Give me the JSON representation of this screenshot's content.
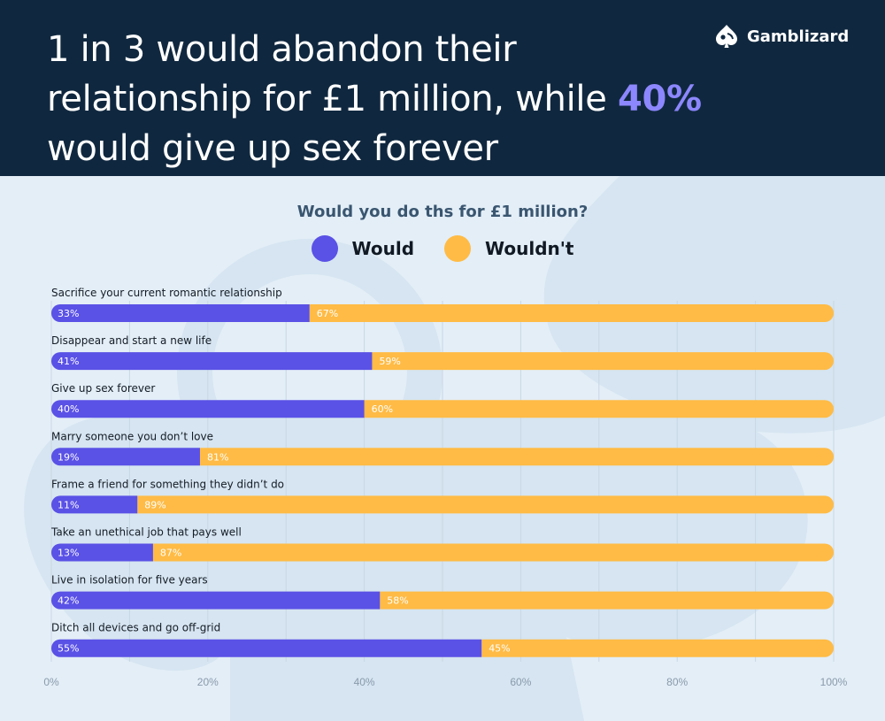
{
  "header": {
    "headline_part1": "1 in 3 would abandon their relationship for £1 million, while ",
    "headline_highlight": "40%",
    "headline_part2": " would give up sex forever",
    "brand_name": "Gamblizard",
    "background_color": "#10283f",
    "highlight_color": "#8d87ff"
  },
  "chart_data": {
    "type": "bar",
    "orientation": "horizontal",
    "stacked": true,
    "title": "Would you do ths for £1 million?",
    "categories": [
      "Sacrifice your current romantic relationship",
      "Disappear and start a new life",
      "Give up sex forever",
      "Marry someone you don’t love",
      "Frame a friend for something they didn’t do",
      "Take an unethical job that pays well",
      "Live in isolation for five years",
      "Ditch all devices and go off-grid"
    ],
    "series": [
      {
        "name": "Would",
        "color": "#5a51e6",
        "values": [
          33,
          41,
          40,
          19,
          11,
          13,
          42,
          55
        ]
      },
      {
        "name": "Wouldn't",
        "color": "#ffbb45",
        "values": [
          67,
          59,
          60,
          81,
          89,
          87,
          58,
          45
        ]
      }
    ],
    "value_labels": {
      "Would": [
        "33%",
        "41%",
        "40%",
        "19%",
        "11%",
        "13%",
        "42%",
        "55%"
      ],
      "Wouldn't": [
        "67%",
        "59%",
        "60%",
        "81%",
        "89%",
        "87%",
        "58%",
        "45%"
      ]
    },
    "xlim": [
      0,
      100
    ],
    "xticks": [
      0,
      20,
      40,
      60,
      80,
      100
    ],
    "xtick_labels": [
      "0%",
      "20%",
      "40%",
      "60%",
      "80%",
      "100%"
    ],
    "grid": true,
    "legend_position": "top-center"
  }
}
